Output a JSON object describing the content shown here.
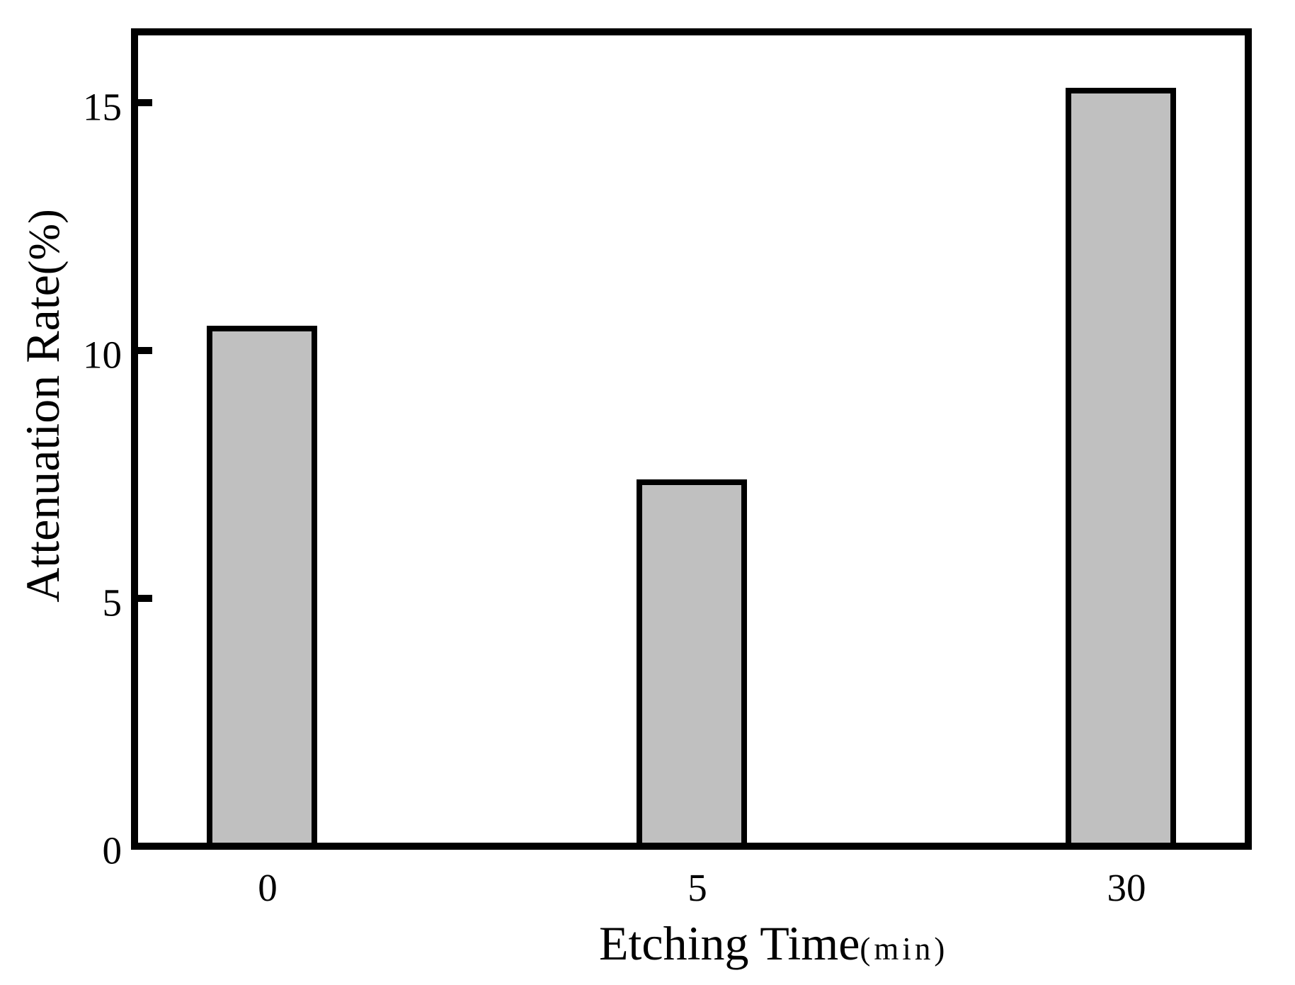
{
  "chart_data": {
    "type": "bar",
    "title": "",
    "xlabel": "Etching Time",
    "xlabel_unit": "(min)",
    "ylabel": "Attenuation Rate",
    "ylabel_unit": "(%)",
    "categories": [
      "0",
      "5",
      "30"
    ],
    "values": [
      10.5,
      7.4,
      15.3
    ],
    "yticks": [
      0,
      5,
      10,
      15
    ],
    "ylim": [
      0,
      16.5
    ],
    "grid": false,
    "legend": null,
    "bar_fill_color": "#C0C0C0",
    "bar_border_color": "#000000",
    "axis_color": "#000000",
    "background_color": "#FFFFFF"
  }
}
